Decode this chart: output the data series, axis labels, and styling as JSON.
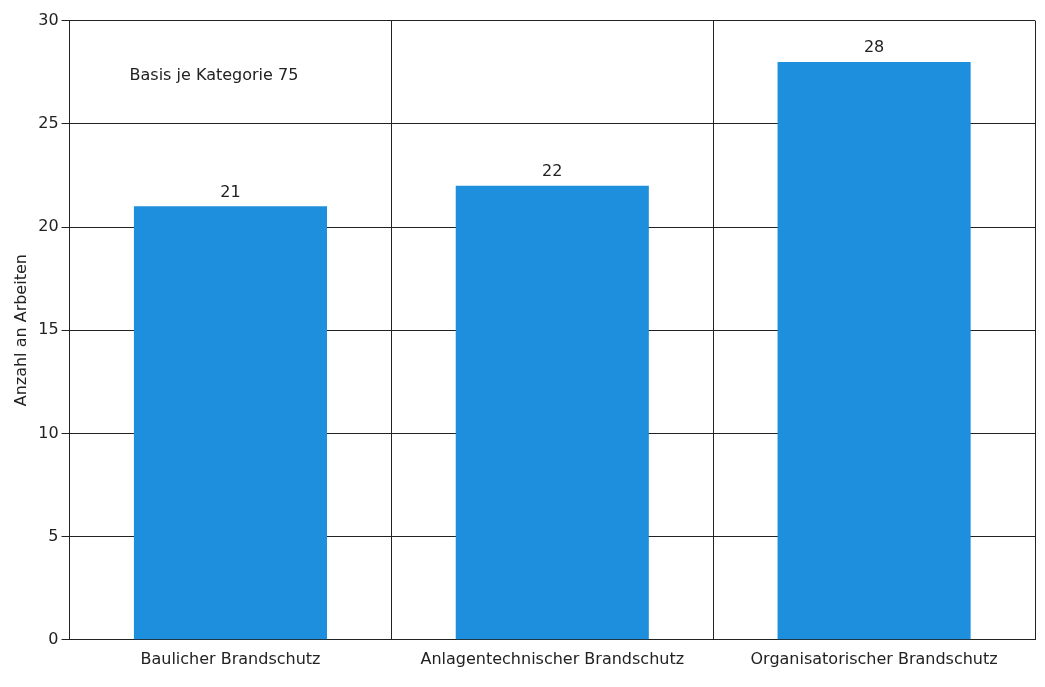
{
  "chart_data": {
    "type": "bar",
    "ylabel": "Anzahl an Arbeiten",
    "categories": [
      "Baulicher Brandschutz",
      "Anlagentechnischer Brandschutz",
      "Organisatorischer Brandschutz"
    ],
    "values": [
      21,
      22,
      28
    ],
    "color": "#1e8fdc",
    "ylim": [
      0,
      30
    ],
    "yticks": [
      0,
      5,
      10,
      15,
      20,
      25,
      30
    ],
    "grid": true,
    "data_labels": true,
    "annotations": [
      "Basis je Kategorie 75"
    ]
  }
}
